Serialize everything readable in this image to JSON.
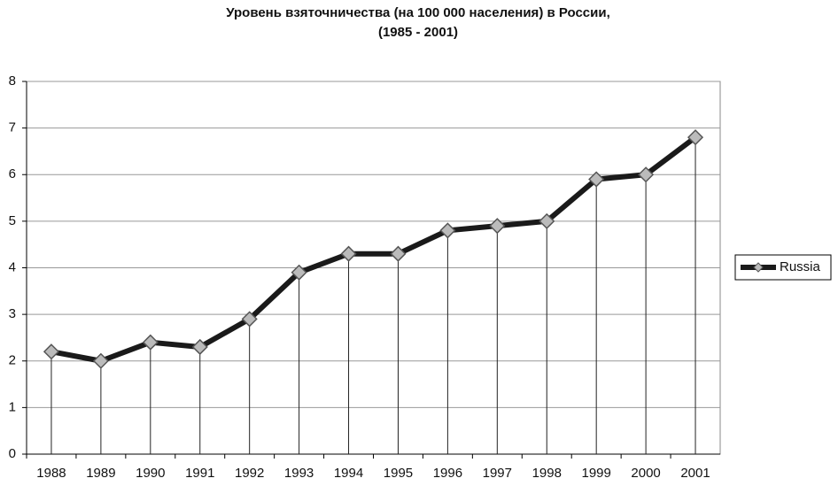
{
  "chart_data": {
    "type": "line",
    "title": "Уровень взяточничества (на 100 000 населения) в России,",
    "subtitle": "(1985 - 2001)",
    "categories": [
      "1988",
      "1989",
      "1990",
      "1991",
      "1992",
      "1993",
      "1994",
      "1995",
      "1996",
      "1997",
      "1998",
      "1999",
      "2000",
      "2001"
    ],
    "series": [
      {
        "name": "Russia",
        "color": "#1a1a1a",
        "values": [
          2.2,
          2.0,
          2.4,
          2.3,
          2.9,
          3.9,
          4.3,
          4.3,
          4.8,
          4.9,
          5.0,
          5.9,
          6.0,
          6.8
        ]
      }
    ],
    "ylim": [
      0,
      8
    ],
    "yticks": [
      0,
      1,
      2,
      3,
      4,
      5,
      6,
      7,
      8
    ],
    "grid": true,
    "drop_lines": true,
    "legend": "right"
  }
}
